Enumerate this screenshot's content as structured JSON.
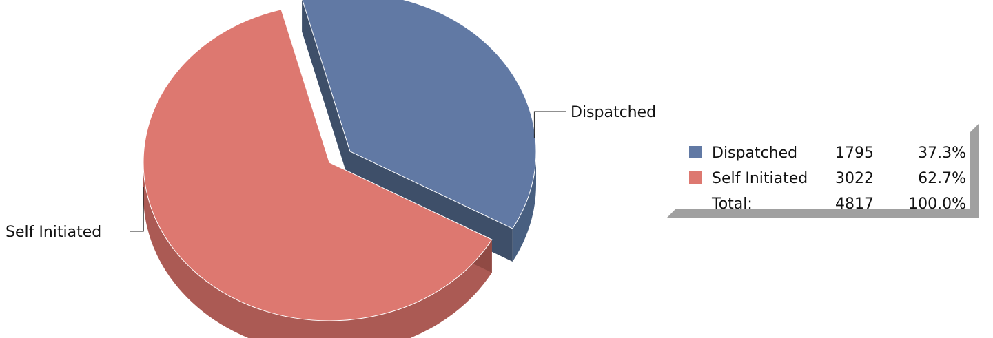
{
  "chart_data": {
    "type": "pie",
    "title": "",
    "style": "3d-exploded",
    "slices": [
      {
        "label": "Dispatched",
        "value": 1795,
        "percent": "37.3%",
        "color": "#6179A4",
        "side_color": "#485F80",
        "inner_color": "#3E4F69"
      },
      {
        "label": "Self Initiated",
        "value": 3022,
        "percent": "62.7%",
        "color": "#DD7870",
        "side_color": "#AB5A54",
        "inner_color": "#904A44"
      }
    ],
    "total": {
      "label": "Total:",
      "value": 4817,
      "percent": "100.0%"
    },
    "legend": {
      "position": "right",
      "shadow_color": "#A0A0A0"
    }
  }
}
